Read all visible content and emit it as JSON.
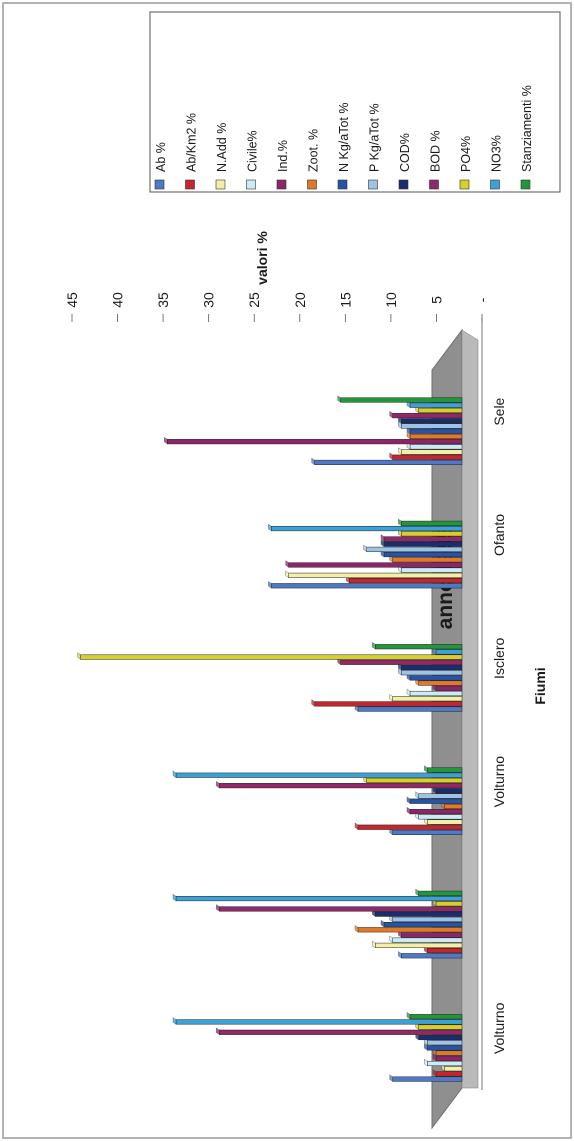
{
  "chart_data": {
    "type": "bar",
    "title": "anno 1995",
    "xlabel": "Fiumi",
    "ylabel": "valori %",
    "ylim": [
      0,
      45
    ],
    "y_ticks": [
      "-",
      "5",
      "10",
      "15",
      "20",
      "25",
      "30",
      "35",
      "40",
      "45"
    ],
    "categories": [
      "Volturno",
      "Volturno",
      "Volturno",
      "Isclero",
      "Ofanto",
      "Sele"
    ],
    "category_labels": [
      "Volturno",
      "",
      "Volturno",
      "Isclero",
      "Ofanto",
      "Sele"
    ],
    "legend_position": "right",
    "series": [
      {
        "name": "Ab %",
        "color": "#4f79c6",
        "values": [
          8,
          7,
          8,
          12,
          22,
          17
        ]
      },
      {
        "name": "Ab/Km2 %",
        "color": "#c4262e",
        "values": [
          3,
          4,
          3,
          7,
          13,
          8
        ]
      },
      {
        "name": "N.Add %",
        "color": "#f3efa6",
        "values": [
          2,
          10,
          4,
          8,
          20,
          7
        ]
      },
      {
        "name": "Civile%",
        "color": "#cdebf4",
        "values": [
          4,
          8,
          5,
          6,
          7,
          6
        ]
      },
      {
        "name": "Ind.%",
        "color": "#8d2568",
        "values": [
          3,
          7,
          6,
          3,
          6,
          4
        ]
      },
      {
        "name": "Zoot. %",
        "color": "#e07a2a",
        "values": [
          3,
          12,
          2,
          5,
          8,
          6
        ]
      },
      {
        "name": "N Kg/aTot %",
        "color": "#2754a6",
        "values": [
          4,
          9,
          6,
          6,
          9,
          6
        ]
      },
      {
        "name": "P Kg/aTot %",
        "color": "#9dc3e6",
        "values": [
          4,
          8,
          5,
          7,
          11,
          7
        ]
      },
      {
        "name": "COD%",
        "color": "#1a2d6e",
        "values": [
          5,
          10,
          3,
          7,
          9,
          7
        ]
      },
      {
        "name": "BOD %",
        "color": "#922868",
        "values": [
          8,
          5,
          14,
          14,
          9,
          8
        ]
      },
      {
        "name": "PO4%",
        "color": "#d9cf2a",
        "values": [
          5,
          3,
          11,
          3,
          7,
          5
        ]
      },
      {
        "name": "NO3%",
        "color": "#3aa2d6",
        "values": [
          4,
          5,
          8,
          3,
          6,
          6
        ]
      },
      {
        "name": "Stanziamenti %",
        "color": "#24963a",
        "values": [
          6,
          5,
          4,
          10,
          7,
          14
        ]
      }
    ],
    "annotations": [
      {
        "category": 0,
        "series": "BOD %",
        "value": 28
      },
      {
        "category": 0,
        "series": "NO3%",
        "value": 33
      },
      {
        "category": 1,
        "series": "BOD %",
        "value": 28
      },
      {
        "category": 1,
        "series": "NO3%",
        "value": 33
      },
      {
        "category": 2,
        "series": "BOD %",
        "value": 28
      },
      {
        "category": 2,
        "series": "NO3%",
        "value": 33
      },
      {
        "category": 2,
        "series": "Ab/Km2 %",
        "value": 12
      },
      {
        "category": 3,
        "series": "PO4%",
        "value": 44
      },
      {
        "category": 3,
        "series": "Ab/Km2 %",
        "value": 17
      },
      {
        "category": 4,
        "series": "Ind.%",
        "value": 20
      },
      {
        "category": 4,
        "series": "NO3%",
        "value": 22
      },
      {
        "category": 5,
        "series": "Ind.%",
        "value": 34
      }
    ]
  }
}
